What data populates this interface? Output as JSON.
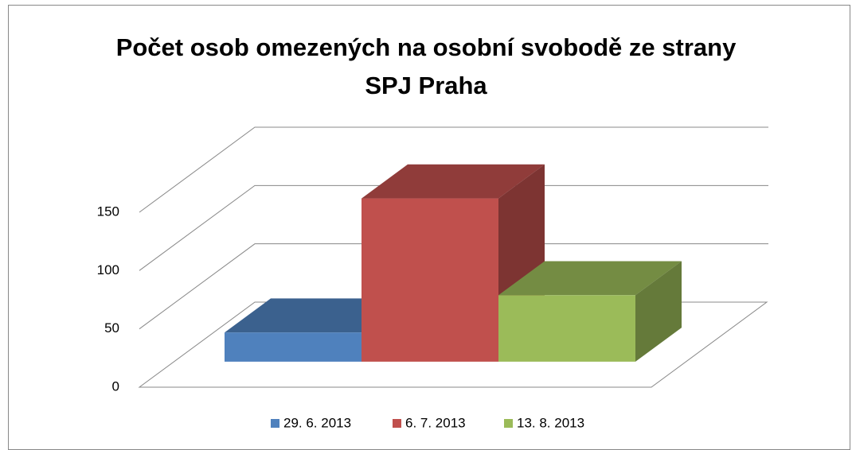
{
  "chart_data": {
    "type": "bar3d",
    "title": "Počet osob omezených na osobní svobodě ze strany SPJ Praha",
    "categories": [
      null
    ],
    "series": [
      {
        "name": "29. 6. 2013",
        "color": "#4f81bd",
        "values": [
          25
        ]
      },
      {
        "name": "6. 7. 2013",
        "color": "#c0504d",
        "values": [
          140
        ]
      },
      {
        "name": "13. 8. 2013",
        "color": "#9bbb59",
        "values": [
          57
        ]
      }
    ],
    "ylim": [
      0,
      150
    ],
    "yticks": [
      0,
      50,
      100,
      150
    ],
    "grid": true,
    "legend": "bottom"
  }
}
